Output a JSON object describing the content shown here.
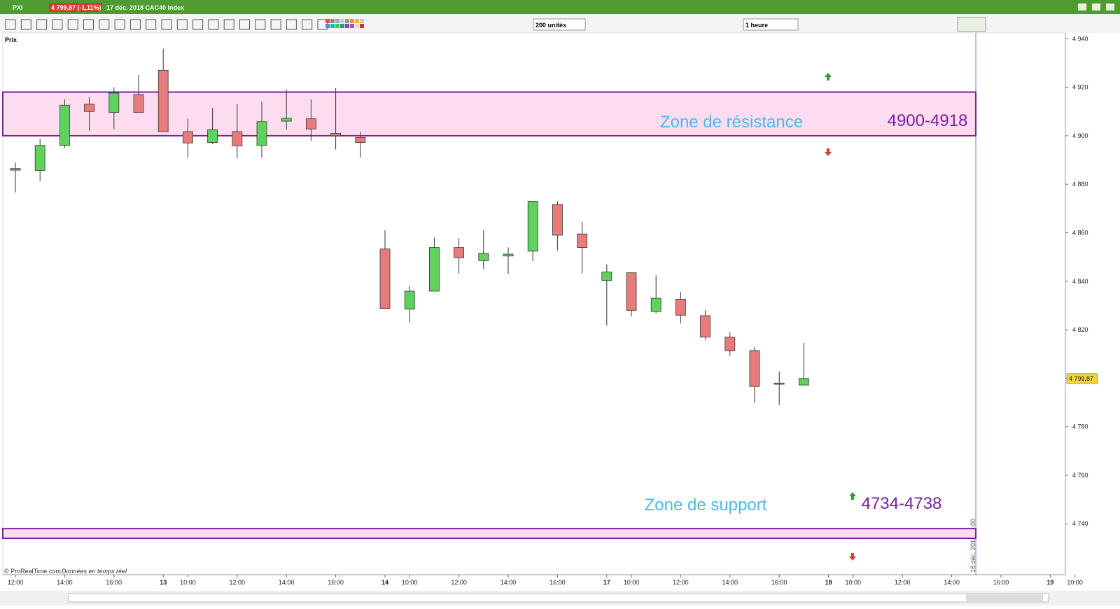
{
  "header": {
    "symbol": "PXI",
    "price_change": "4 799,87 (-1,11%)",
    "description": "17 déc. 2018 CAC40 Index"
  },
  "toolbar": {
    "units": "200 unités",
    "interval": "1 heure",
    "panel": "Prix"
  },
  "footer": {
    "copyright": "© ProRealTime.com",
    "note": "Données en temps réel"
  },
  "chart_data": {
    "type": "candlestick",
    "categories": [
      "12:00",
      null,
      "14:00",
      null,
      "16:00",
      null,
      "13",
      "10:00",
      null,
      "12:00",
      null,
      "14:00",
      null,
      "16:00",
      null,
      "14",
      "10:00",
      null,
      "12:00",
      null,
      "14:00",
      null,
      "16:00",
      null,
      "17",
      "10:00",
      null,
      "12:00",
      null,
      "14:00",
      null,
      "16:00",
      null,
      "18",
      "10:00",
      null,
      "12:00",
      null,
      "14:00",
      null,
      "16:00",
      null,
      "19",
      "10:00"
    ],
    "series": [
      {
        "name": "CAC40 Index",
        "up_color": "#5dd35d",
        "down_color": "#e87c7c",
        "open": [
          4886.5,
          4885.7,
          4896,
          4913,
          4909.6,
          4917,
          4927,
          4901.7,
          4897.2,
          4901.7,
          4896,
          4906,
          4907,
          4901,
          4899.3,
          4853.3,
          4828.5,
          4835.9,
          4853.9,
          4848.5,
          4850.4,
          4852.4,
          4871.6,
          4859.5,
          4840.3,
          4843.5,
          4827.5,
          4832.6,
          4825.8,
          4817,
          4811.4,
          4797.5,
          4797.2,
          null,
          null,
          null,
          null,
          null,
          null,
          null,
          null,
          null,
          null,
          null
        ],
        "high": [
          4889,
          4898.7,
          4915,
          4916,
          4920,
          4925,
          4935.9,
          4907,
          4911.4,
          4913,
          4914,
          4919,
          4915,
          4919.6,
          4901.7,
          4861,
          4838,
          4858,
          4857.7,
          4861,
          4854,
          4873,
          4873,
          4864.5,
          4847,
          4843.5,
          4842.4,
          4835.6,
          4828,
          4819,
          4812.9,
          4802.8,
          4814.6,
          null,
          null,
          null,
          null,
          null,
          null,
          null,
          null,
          null,
          null,
          null
        ],
        "low": [
          4876.6,
          4881.3,
          4895,
          4902,
          4902.8,
          4909.6,
          4901.7,
          4891,
          4896.5,
          4890.7,
          4891,
          4902.5,
          4897.8,
          4894.3,
          4891,
          4828.8,
          4822.9,
          4835.9,
          4843.2,
          4845,
          4843,
          4848.3,
          4852.7,
          4843.2,
          4821.7,
          4825.5,
          4826.8,
          4822.6,
          4815.8,
          4809.3,
          4789.9,
          4789,
          4797.2,
          null,
          null,
          null,
          null,
          null,
          null,
          null,
          null,
          null,
          null,
          null
        ],
        "close": [
          4885.8,
          4896,
          4912.6,
          4910,
          4917.6,
          4909.6,
          4901.7,
          4897,
          4902.5,
          4895.8,
          4905.8,
          4907.2,
          4902.8,
          4900,
          4897.2,
          4828.8,
          4835.9,
          4853.9,
          4849.7,
          4851.5,
          4851.2,
          4873,
          4859,
          4853.9,
          4843.8,
          4828,
          4833,
          4826,
          4817,
          4811.4,
          4796.6,
          4798,
          4799.87,
          null,
          null,
          null,
          null,
          null,
          null,
          null,
          null,
          null,
          null,
          null
        ]
      }
    ],
    "ylim": [
      4719,
      4942.4
    ],
    "yticks": [
      {
        "value": 4940,
        "label": "4 940"
      },
      {
        "value": 4920,
        "label": "4 920"
      },
      {
        "value": 4900,
        "label": "4 900"
      },
      {
        "value": 4880,
        "label": "4 880"
      },
      {
        "value": 4860,
        "label": "4 860"
      },
      {
        "value": 4840,
        "label": "4 840"
      },
      {
        "value": 4820,
        "label": "4 820"
      },
      {
        "value": 4800,
        "label": "4 800"
      },
      {
        "value": 4780,
        "label": "4 780"
      },
      {
        "value": 4760,
        "label": "4 760"
      },
      {
        "value": 4740,
        "label": "4 740"
      }
    ],
    "last_price": {
      "value": 4799.87,
      "label": "4 799,87"
    },
    "zones": [
      {
        "name": "Zone de résistance",
        "label": "4900-4918",
        "low": 4900,
        "high": 4918
      },
      {
        "name": "Zone de support",
        "label": "4734-4738",
        "low": 4734,
        "high": 4738
      }
    ],
    "time_marker": "18 déc. 2018 16:00"
  }
}
